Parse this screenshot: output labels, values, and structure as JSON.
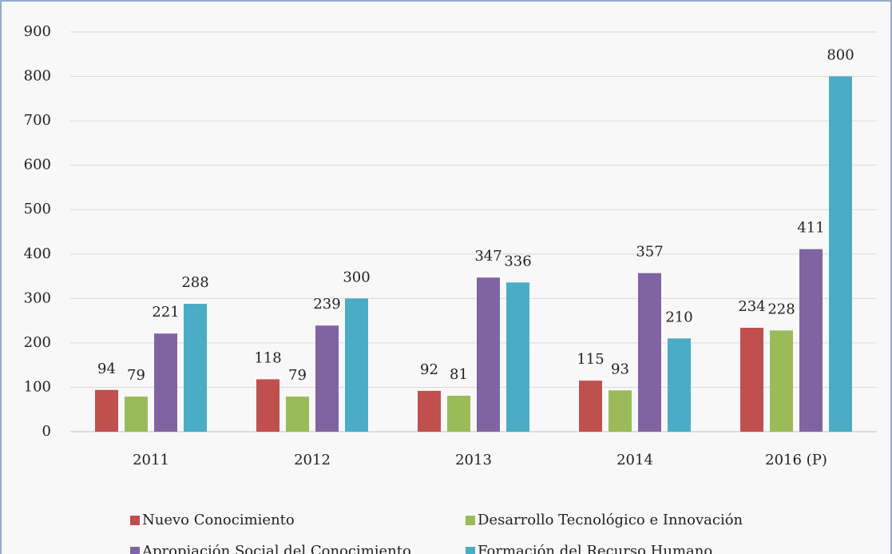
{
  "chart_data": {
    "type": "bar",
    "categories": [
      "2011",
      "2012",
      "2013",
      "2014",
      "2016 (P)"
    ],
    "series": [
      {
        "name": "Nuevo Conocimiento",
        "color": "#c0504d",
        "values": [
          94,
          118,
          92,
          115,
          234
        ]
      },
      {
        "name": "Desarrollo Tecnológico e Innovación",
        "color": "#9bbb59",
        "values": [
          79,
          79,
          81,
          93,
          228
        ]
      },
      {
        "name": "Apropiación Social del Conocimiento",
        "color": "#8064a2",
        "values": [
          221,
          239,
          347,
          357,
          411
        ]
      },
      {
        "name": "Formación del Recurso Humano",
        "color": "#4bacc6",
        "values": [
          288,
          300,
          336,
          210,
          800
        ]
      }
    ],
    "ylim": [
      0,
      900
    ],
    "yticks": [
      0,
      100,
      200,
      300,
      400,
      500,
      600,
      700,
      800,
      900
    ],
    "grid": true,
    "legend": "bottom"
  }
}
